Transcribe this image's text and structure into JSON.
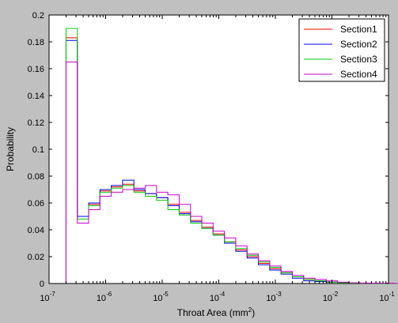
{
  "chart_data": {
    "type": "line",
    "style": "stairs-histogram",
    "xscale": "log",
    "xlabel": "Throat Area (mm",
    "xlabel_sup": "2",
    "xlabel_close": ")",
    "ylabel": "Probability",
    "xlim": [
      1e-07,
      0.1
    ],
    "ylim": [
      0,
      0.2
    ],
    "grid": false,
    "legend_position": "top-right",
    "x_ticks": [
      {
        "value": 1e-07,
        "base": "10",
        "exp": "-7"
      },
      {
        "value": 1e-06,
        "base": "10",
        "exp": "-6"
      },
      {
        "value": 1e-05,
        "base": "10",
        "exp": "-5"
      },
      {
        "value": 0.0001,
        "base": "10",
        "exp": "-4"
      },
      {
        "value": 0.001,
        "base": "10",
        "exp": "-3"
      },
      {
        "value": 0.01,
        "base": "10",
        "exp": "-2"
      },
      {
        "value": 0.1,
        "base": "10",
        "exp": "-1"
      }
    ],
    "y_ticks": [
      "0",
      "0.02",
      "0.04",
      "0.06",
      "0.08",
      "0.1",
      "0.12",
      "0.14",
      "0.16",
      "0.18",
      "0.2"
    ],
    "bin_log10_start": -6.7,
    "bin_log10_step": 0.2,
    "series": [
      {
        "name": "Section1",
        "color": "#ff0000",
        "values": [
          0.183,
          0.05,
          0.059,
          0.069,
          0.072,
          0.074,
          0.069,
          0.067,
          0.064,
          0.059,
          0.053,
          0.047,
          0.042,
          0.037,
          0.031,
          0.025,
          0.02,
          0.015,
          0.011,
          0.008,
          0.005,
          0.003,
          0.002,
          0.001,
          0.0005,
          0.0003,
          0.0002,
          0.0001,
          0,
          0,
          0,
          0,
          0,
          0,
          0,
          0
        ]
      },
      {
        "name": "Section2",
        "color": "#0000ff",
        "values": [
          0.181,
          0.05,
          0.06,
          0.07,
          0.073,
          0.077,
          0.07,
          0.067,
          0.064,
          0.058,
          0.052,
          0.046,
          0.041,
          0.036,
          0.03,
          0.024,
          0.019,
          0.014,
          0.01,
          0.007,
          0.004,
          0.002,
          0.0015,
          0.001,
          0.0005,
          0.0003,
          0.0002,
          0.0001,
          0,
          0,
          0,
          0,
          0,
          0,
          0,
          0
        ]
      },
      {
        "name": "Section3",
        "color": "#00cc00",
        "values": [
          0.19,
          0.048,
          0.058,
          0.068,
          0.071,
          0.073,
          0.068,
          0.065,
          0.062,
          0.055,
          0.051,
          0.045,
          0.041,
          0.036,
          0.031,
          0.026,
          0.021,
          0.016,
          0.012,
          0.008,
          0.005,
          0.003,
          0.002,
          0.001,
          0.0005,
          0.0003,
          0.0002,
          0.0001,
          0,
          0,
          0,
          0,
          0,
          0,
          0,
          0
        ]
      },
      {
        "name": "Section4",
        "color": "#cc00cc",
        "values": [
          0.165,
          0.045,
          0.055,
          0.065,
          0.068,
          0.07,
          0.071,
          0.073,
          0.068,
          0.066,
          0.059,
          0.05,
          0.045,
          0.039,
          0.034,
          0.028,
          0.022,
          0.017,
          0.013,
          0.009,
          0.006,
          0.004,
          0.003,
          0.002,
          0.001,
          0.0006,
          0.0004,
          0.0003,
          0.0002,
          0.0001,
          0.0001,
          0.0001,
          0.0001,
          0.0001,
          0.0001,
          0
        ]
      }
    ]
  }
}
